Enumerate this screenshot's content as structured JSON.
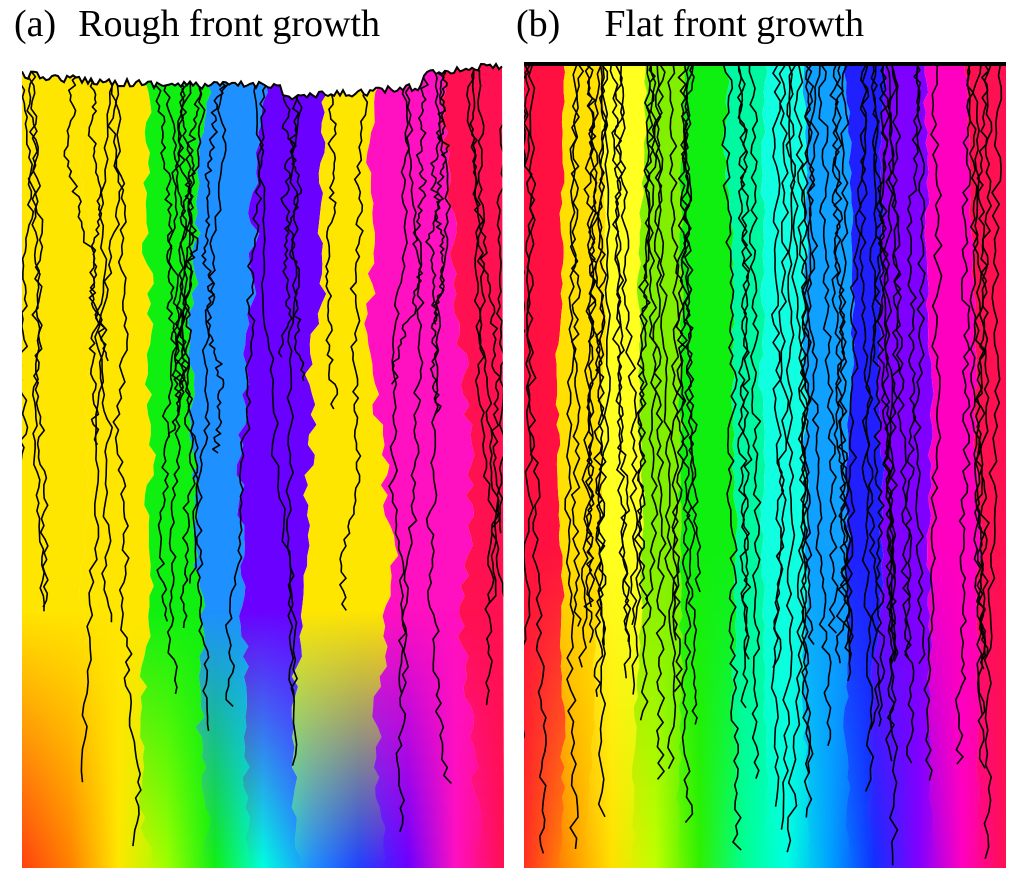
{
  "figure": {
    "panels": [
      {
        "letter": "(a)",
        "title": "Rough front growth",
        "colors": [
          "#ffe600",
          "#ffe600",
          "#10f010",
          "#1e90ff",
          "#6a00ff",
          "#ffe600",
          "#ff10c0",
          "#ff1050"
        ],
        "bottom_colors": [
          "#ff4010",
          "#ff8000",
          "#ffe600",
          "#a0ff00",
          "#10f010",
          "#00ffe0",
          "#1e90ff",
          "#2040ff",
          "#6a00ff",
          "#ff10c0",
          "#ff1050"
        ]
      },
      {
        "letter": "(b)",
        "title": "Flat front growth",
        "colors": [
          "#ff1040",
          "#ffe000",
          "#ffff20",
          "#80f000",
          "#10f010",
          "#00f8a0",
          "#10ffe0",
          "#10a0ff",
          "#2020ff",
          "#8000ff",
          "#ff00c0",
          "#ff1050"
        ],
        "bottom_colors": [
          "#ff3020",
          "#ff9000",
          "#ffe000",
          "#c0ff00",
          "#30f000",
          "#00ff90",
          "#00ffe0",
          "#00a0ff",
          "#1030ff",
          "#8000ff",
          "#ff00c0",
          "#ff1050"
        ]
      }
    ]
  }
}
